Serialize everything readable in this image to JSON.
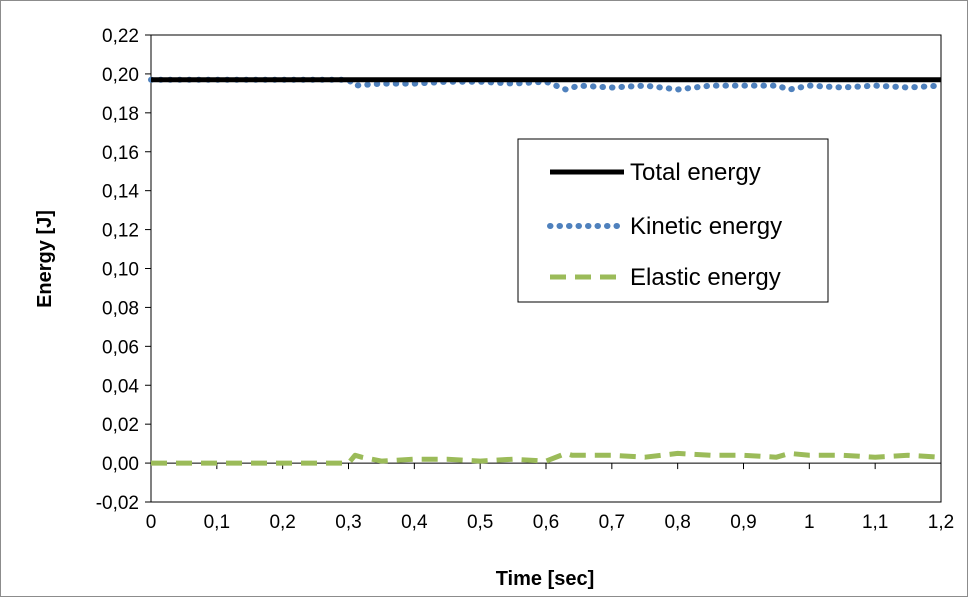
{
  "chart_data": {
    "type": "line",
    "xlabel": "Time [sec]",
    "ylabel": "Energy [J]",
    "xlim": [
      0,
      1.2
    ],
    "ylim": [
      -0.02,
      0.22
    ],
    "x_ticks": [
      "0",
      "0,1",
      "0,2",
      "0,3",
      "0,4",
      "0,5",
      "0,6",
      "0,7",
      "0,8",
      "0,9",
      "1",
      "1,1",
      "1,2"
    ],
    "y_ticks": [
      "-0,02",
      "0,00",
      "0,02",
      "0,04",
      "0,06",
      "0,08",
      "0,10",
      "0,12",
      "0,14",
      "0,16",
      "0,18",
      "0,20",
      "0,22"
    ],
    "grid": false,
    "legend_position": "center-right",
    "series": [
      {
        "name": "Total energy",
        "style": "solid",
        "color": "#000000",
        "x": [
          0,
          0.1,
          0.2,
          0.3,
          0.4,
          0.5,
          0.6,
          0.7,
          0.8,
          0.9,
          1.0,
          1.1,
          1.2
        ],
        "y": [
          0.197,
          0.197,
          0.197,
          0.197,
          0.197,
          0.197,
          0.197,
          0.197,
          0.197,
          0.197,
          0.197,
          0.197,
          0.197
        ]
      },
      {
        "name": "Kinetic energy",
        "style": "dotted",
        "color": "#4f81bd",
        "x": [
          0,
          0.05,
          0.1,
          0.15,
          0.2,
          0.25,
          0.3,
          0.31,
          0.35,
          0.4,
          0.45,
          0.5,
          0.55,
          0.6,
          0.63,
          0.65,
          0.7,
          0.75,
          0.8,
          0.85,
          0.9,
          0.95,
          0.97,
          1.0,
          1.05,
          1.1,
          1.15,
          1.2
        ],
        "y": [
          0.197,
          0.197,
          0.197,
          0.197,
          0.197,
          0.197,
          0.197,
          0.194,
          0.195,
          0.195,
          0.196,
          0.196,
          0.195,
          0.196,
          0.192,
          0.194,
          0.193,
          0.194,
          0.192,
          0.194,
          0.194,
          0.194,
          0.192,
          0.194,
          0.193,
          0.194,
          0.193,
          0.194
        ]
      },
      {
        "name": "Elastic energy",
        "style": "dashed",
        "color": "#9bbb59",
        "x": [
          0,
          0.05,
          0.1,
          0.15,
          0.2,
          0.25,
          0.3,
          0.31,
          0.32,
          0.35,
          0.4,
          0.45,
          0.5,
          0.55,
          0.6,
          0.63,
          0.64,
          0.7,
          0.75,
          0.8,
          0.85,
          0.9,
          0.95,
          0.97,
          1.0,
          1.05,
          1.1,
          1.15,
          1.2
        ],
        "y": [
          0,
          0,
          0,
          0,
          0,
          0,
          0,
          0.004,
          0.003,
          0.001,
          0.002,
          0.002,
          0.001,
          0.002,
          0.001,
          0.005,
          0.004,
          0.004,
          0.003,
          0.005,
          0.004,
          0.004,
          0.003,
          0.005,
          0.004,
          0.004,
          0.003,
          0.004,
          0.003
        ]
      }
    ]
  }
}
